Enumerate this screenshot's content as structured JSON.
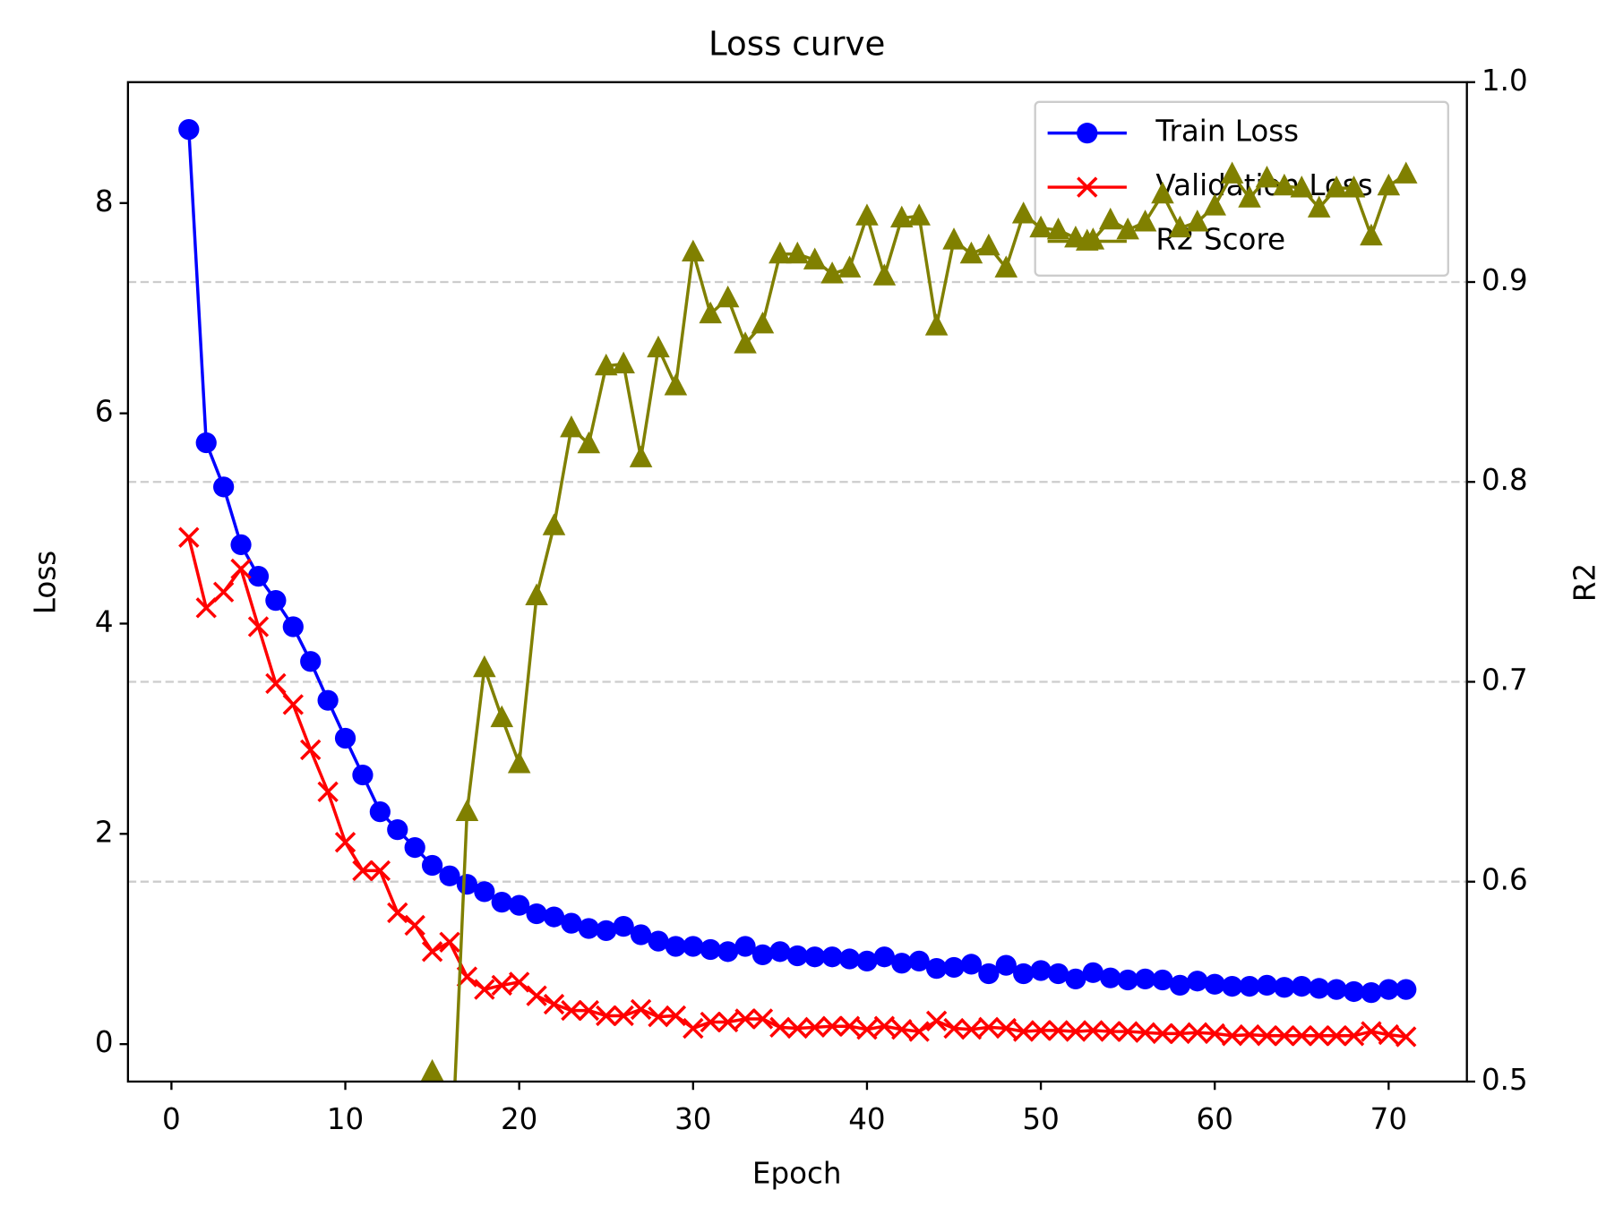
{
  "chart_data": {
    "type": "line",
    "title": "Loss curve",
    "x_label": "Epoch",
    "y_label": "Loss",
    "y2_label": "R2",
    "x": [
      1,
      2,
      3,
      4,
      5,
      6,
      7,
      8,
      9,
      10,
      11,
      12,
      13,
      14,
      15,
      16,
      17,
      18,
      19,
      20,
      21,
      22,
      23,
      24,
      25,
      26,
      27,
      28,
      29,
      30,
      31,
      32,
      33,
      34,
      35,
      36,
      37,
      38,
      39,
      40,
      41,
      42,
      43,
      44,
      45,
      46,
      47,
      48,
      49,
      50,
      51,
      52,
      53,
      54,
      55,
      56,
      57,
      58,
      59,
      60,
      61,
      62,
      63,
      64,
      65,
      66,
      67,
      68,
      69,
      70,
      71
    ],
    "series": [
      {
        "name": "Train Loss",
        "color": "#0000ff",
        "marker": "circle",
        "values": [
          8.7,
          5.72,
          5.3,
          4.75,
          4.45,
          4.22,
          3.97,
          3.64,
          3.27,
          2.91,
          2.56,
          2.21,
          2.04,
          1.87,
          1.7,
          1.6,
          1.52,
          1.45,
          1.35,
          1.32,
          1.24,
          1.21,
          1.15,
          1.1,
          1.08,
          1.12,
          1.04,
          0.98,
          0.93,
          0.93,
          0.9,
          0.88,
          0.93,
          0.85,
          0.88,
          0.84,
          0.83,
          0.83,
          0.81,
          0.79,
          0.83,
          0.77,
          0.79,
          0.72,
          0.73,
          0.76,
          0.67,
          0.75,
          0.67,
          0.7,
          0.67,
          0.62,
          0.68,
          0.63,
          0.61,
          0.62,
          0.61,
          0.56,
          0.6,
          0.57,
          0.55,
          0.55,
          0.56,
          0.54,
          0.55,
          0.53,
          0.52,
          0.5,
          0.49,
          0.52,
          0.52
        ]
      },
      {
        "name": "Validation Loss",
        "color": "#ff0000",
        "marker": "x",
        "values": [
          4.82,
          4.15,
          4.3,
          4.52,
          3.97,
          3.43,
          3.23,
          2.8,
          2.4,
          1.92,
          1.65,
          1.65,
          1.25,
          1.13,
          0.88,
          0.97,
          0.64,
          0.52,
          0.56,
          0.59,
          0.46,
          0.38,
          0.32,
          0.32,
          0.27,
          0.27,
          0.33,
          0.26,
          0.27,
          0.15,
          0.21,
          0.21,
          0.24,
          0.24,
          0.16,
          0.15,
          0.16,
          0.17,
          0.17,
          0.14,
          0.17,
          0.14,
          0.12,
          0.22,
          0.15,
          0.14,
          0.16,
          0.15,
          0.12,
          0.13,
          0.13,
          0.12,
          0.13,
          0.12,
          0.12,
          0.11,
          0.1,
          0.1,
          0.11,
          0.1,
          0.08,
          0.09,
          0.08,
          0.08,
          0.08,
          0.08,
          0.08,
          0.08,
          0.12,
          0.09,
          0.07
        ]
      },
      {
        "name": "R2 Score",
        "color": "#808000",
        "marker": "triangle",
        "axis": "y2",
        "values": [
          null,
          null,
          null,
          null,
          null,
          null,
          null,
          null,
          null,
          null,
          null,
          null,
          null,
          null,
          0.505,
          0.44,
          0.635,
          0.707,
          0.682,
          0.659,
          0.743,
          0.778,
          0.827,
          0.819,
          0.858,
          0.859,
          0.812,
          0.867,
          0.848,
          0.915,
          0.884,
          0.892,
          0.869,
          0.879,
          0.914,
          0.914,
          0.911,
          0.904,
          0.907,
          0.933,
          0.903,
          0.932,
          0.933,
          0.878,
          0.921,
          0.914,
          0.918,
          0.907,
          0.934,
          0.927,
          0.926,
          0.922,
          0.921,
          0.931,
          0.926,
          0.93,
          0.944,
          0.927,
          0.93,
          0.938,
          0.954,
          0.942,
          0.952,
          0.948,
          0.947,
          0.937,
          0.947,
          0.947,
          0.923,
          0.948,
          0.954
        ]
      }
    ],
    "xlim": [
      -2.5,
      74.5
    ],
    "xticks": [
      0,
      10,
      20,
      30,
      40,
      50,
      60,
      70
    ],
    "ylim": [
      -0.356,
      9.15
    ],
    "yticks": [
      0,
      2,
      4,
      6,
      8
    ],
    "y2lim": [
      0.5,
      1.0
    ],
    "y2ticks": [
      0.5,
      0.6,
      0.7,
      0.8,
      0.9,
      {
        "value": 1.0,
        "label": "1.0"
      }
    ],
    "grid": "y2",
    "legend": "upper right"
  }
}
